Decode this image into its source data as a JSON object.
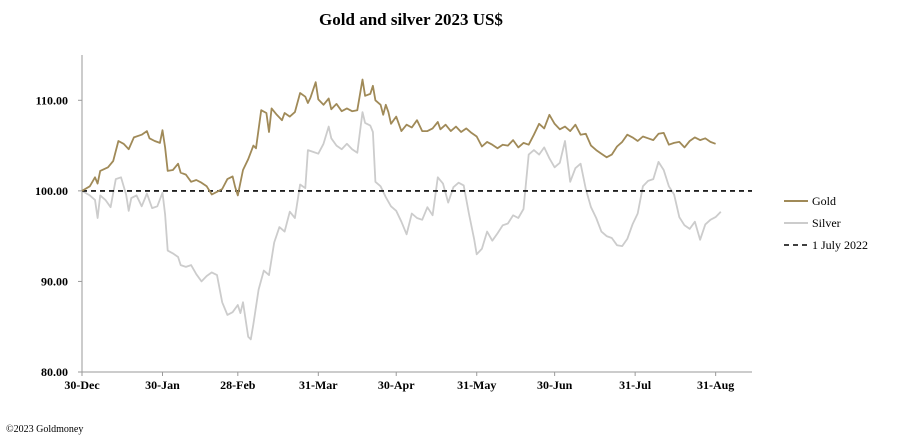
{
  "chart_data": {
    "type": "line",
    "title": "Gold and silver 2023  US$",
    "xlabel": "",
    "ylabel": "",
    "ylim": [
      80,
      115
    ],
    "yticks": [
      "80.00",
      "90.00",
      "100.00",
      "110.00"
    ],
    "yticks_values": [
      80,
      90,
      100,
      110
    ],
    "xticks": [
      "30-Dec",
      "30-Jan",
      "28-Feb",
      "31-Mar",
      "30-Apr",
      "31-May",
      "30-Jun",
      "31-Jul",
      "31-Aug"
    ],
    "xticks_days": [
      0,
      31,
      60,
      91,
      121,
      152,
      182,
      213,
      244
    ],
    "x_range_days": [
      0,
      258
    ],
    "legend_position": "right",
    "series": [
      {
        "name": "Gold",
        "color": "#a08a58",
        "style": "solid",
        "points": [
          [
            0,
            100
          ],
          [
            3,
            100.5
          ],
          [
            5,
            101.5
          ],
          [
            6,
            100.8
          ],
          [
            7,
            102.2
          ],
          [
            10,
            102.6
          ],
          [
            12,
            103.3
          ],
          [
            14,
            105.5
          ],
          [
            16,
            105.2
          ],
          [
            18,
            104.6
          ],
          [
            20,
            105.9
          ],
          [
            23,
            106.2
          ],
          [
            25,
            106.6
          ],
          [
            26,
            105.8
          ],
          [
            28,
            105.5
          ],
          [
            30,
            105.3
          ],
          [
            31,
            106.7
          ],
          [
            32,
            104.8
          ],
          [
            33,
            102.2
          ],
          [
            35,
            102.3
          ],
          [
            37,
            103.0
          ],
          [
            38,
            102.0
          ],
          [
            40,
            101.8
          ],
          [
            42,
            101.0
          ],
          [
            44,
            101.2
          ],
          [
            46,
            100.9
          ],
          [
            48,
            100.5
          ],
          [
            50,
            99.6
          ],
          [
            52,
            99.9
          ],
          [
            54,
            100.2
          ],
          [
            56,
            101.3
          ],
          [
            58,
            101.6
          ],
          [
            59,
            100.4
          ],
          [
            60,
            99.5
          ],
          [
            62,
            102.3
          ],
          [
            64,
            103.5
          ],
          [
            66,
            105.0
          ],
          [
            67,
            104.7
          ],
          [
            69,
            108.9
          ],
          [
            71,
            108.6
          ],
          [
            72,
            106.5
          ],
          [
            73,
            109.1
          ],
          [
            75,
            108.4
          ],
          [
            77,
            107.8
          ],
          [
            78,
            108.6
          ],
          [
            80,
            108.2
          ],
          [
            82,
            108.7
          ],
          [
            84,
            110.8
          ],
          [
            86,
            110.4
          ],
          [
            87,
            109.7
          ],
          [
            88,
            110.3
          ],
          [
            90,
            112.0
          ],
          [
            91,
            110.1
          ],
          [
            93,
            109.5
          ],
          [
            95,
            110.2
          ],
          [
            96,
            109.0
          ],
          [
            98,
            109.6
          ],
          [
            100,
            108.8
          ],
          [
            102,
            109.1
          ],
          [
            104,
            108.8
          ],
          [
            106,
            108.9
          ],
          [
            108,
            112.3
          ],
          [
            109,
            110.5
          ],
          [
            111,
            110.7
          ],
          [
            112,
            111.6
          ],
          [
            113,
            110.0
          ],
          [
            115,
            109.5
          ],
          [
            116,
            108.4
          ],
          [
            117,
            109.5
          ],
          [
            118,
            108.7
          ],
          [
            119,
            107.4
          ],
          [
            121,
            108.2
          ],
          [
            123,
            106.6
          ],
          [
            125,
            107.3
          ],
          [
            127,
            107.0
          ],
          [
            129,
            107.8
          ],
          [
            131,
            106.6
          ],
          [
            133,
            106.6
          ],
          [
            135,
            106.9
          ],
          [
            137,
            107.6
          ],
          [
            138,
            106.8
          ],
          [
            140,
            107.3
          ],
          [
            142,
            106.6
          ],
          [
            144,
            107.1
          ],
          [
            146,
            106.5
          ],
          [
            148,
            106.9
          ],
          [
            150,
            106.4
          ],
          [
            152,
            106.0
          ],
          [
            154,
            104.9
          ],
          [
            156,
            105.4
          ],
          [
            158,
            105.1
          ],
          [
            160,
            104.7
          ],
          [
            162,
            105.1
          ],
          [
            164,
            105.0
          ],
          [
            166,
            105.6
          ],
          [
            168,
            104.8
          ],
          [
            170,
            105.3
          ],
          [
            172,
            105.1
          ],
          [
            174,
            106.2
          ],
          [
            176,
            107.4
          ],
          [
            178,
            106.9
          ],
          [
            180,
            108.4
          ],
          [
            182,
            107.4
          ],
          [
            184,
            106.8
          ],
          [
            186,
            107.1
          ],
          [
            188,
            106.6
          ],
          [
            190,
            107.3
          ],
          [
            192,
            106.2
          ],
          [
            194,
            106.3
          ],
          [
            196,
            105.0
          ],
          [
            198,
            104.5
          ],
          [
            200,
            104.1
          ],
          [
            202,
            103.7
          ],
          [
            204,
            104.0
          ],
          [
            206,
            104.9
          ],
          [
            208,
            105.4
          ],
          [
            210,
            106.2
          ],
          [
            212,
            105.9
          ],
          [
            214,
            105.5
          ],
          [
            216,
            106.0
          ],
          [
            218,
            105.8
          ],
          [
            220,
            105.6
          ],
          [
            222,
            106.3
          ],
          [
            224,
            106.4
          ],
          [
            226,
            105.1
          ],
          [
            228,
            105.3
          ],
          [
            230,
            105.4
          ],
          [
            232,
            104.8
          ],
          [
            234,
            105.5
          ],
          [
            236,
            105.9
          ],
          [
            238,
            105.6
          ],
          [
            240,
            105.8
          ],
          [
            242,
            105.4
          ],
          [
            244,
            105.2
          ]
        ]
      },
      {
        "name": "Silver",
        "color": "#cccccc",
        "style": "solid",
        "points": [
          [
            0,
            100
          ],
          [
            3,
            99.5
          ],
          [
            5,
            99.0
          ],
          [
            6,
            97.0
          ],
          [
            7,
            99.5
          ],
          [
            9,
            99.0
          ],
          [
            11,
            98.2
          ],
          [
            13,
            101.3
          ],
          [
            15,
            101.5
          ],
          [
            17,
            99.6
          ],
          [
            18,
            97.8
          ],
          [
            19,
            99.2
          ],
          [
            21,
            99.5
          ],
          [
            23,
            98.3
          ],
          [
            25,
            99.7
          ],
          [
            27,
            98.1
          ],
          [
            29,
            98.3
          ],
          [
            31,
            99.8
          ],
          [
            32,
            97.4
          ],
          [
            33,
            93.4
          ],
          [
            35,
            93.1
          ],
          [
            37,
            92.7
          ],
          [
            38,
            91.8
          ],
          [
            40,
            91.6
          ],
          [
            42,
            91.8
          ],
          [
            44,
            90.8
          ],
          [
            46,
            90.0
          ],
          [
            48,
            90.6
          ],
          [
            50,
            91.0
          ],
          [
            52,
            90.7
          ],
          [
            54,
            87.7
          ],
          [
            56,
            86.3
          ],
          [
            58,
            86.6
          ],
          [
            60,
            87.4
          ],
          [
            61,
            86.5
          ],
          [
            62,
            87.7
          ],
          [
            64,
            83.9
          ],
          [
            65,
            83.6
          ],
          [
            66,
            85.3
          ],
          [
            68,
            89.1
          ],
          [
            70,
            91.2
          ],
          [
            72,
            90.7
          ],
          [
            74,
            94.3
          ],
          [
            76,
            96.0
          ],
          [
            78,
            95.5
          ],
          [
            80,
            97.7
          ],
          [
            82,
            97.0
          ],
          [
            84,
            100.7
          ],
          [
            86,
            100.3
          ],
          [
            87,
            104.5
          ],
          [
            89,
            104.3
          ],
          [
            91,
            104.1
          ],
          [
            93,
            105.2
          ],
          [
            95,
            107.1
          ],
          [
            96,
            105.8
          ],
          [
            98,
            105.0
          ],
          [
            100,
            104.6
          ],
          [
            102,
            105.2
          ],
          [
            104,
            104.6
          ],
          [
            106,
            104.2
          ],
          [
            108,
            108.7
          ],
          [
            109,
            107.5
          ],
          [
            111,
            107.2
          ],
          [
            112,
            106.5
          ],
          [
            113,
            101.0
          ],
          [
            115,
            100.5
          ],
          [
            117,
            99.3
          ],
          [
            119,
            98.3
          ],
          [
            121,
            97.8
          ],
          [
            123,
            96.6
          ],
          [
            125,
            95.2
          ],
          [
            127,
            97.5
          ],
          [
            129,
            97.0
          ],
          [
            131,
            96.8
          ],
          [
            133,
            98.2
          ],
          [
            135,
            97.3
          ],
          [
            137,
            101.5
          ],
          [
            139,
            100.8
          ],
          [
            141,
            98.7
          ],
          [
            143,
            100.4
          ],
          [
            145,
            100.9
          ],
          [
            147,
            100.6
          ],
          [
            149,
            97.5
          ],
          [
            151,
            94.7
          ],
          [
            152,
            93.0
          ],
          [
            154,
            93.6
          ],
          [
            156,
            95.5
          ],
          [
            158,
            94.5
          ],
          [
            160,
            95.3
          ],
          [
            162,
            96.2
          ],
          [
            164,
            96.4
          ],
          [
            166,
            97.3
          ],
          [
            168,
            97.0
          ],
          [
            170,
            98.0
          ],
          [
            172,
            104.0
          ],
          [
            174,
            104.5
          ],
          [
            176,
            104.0
          ],
          [
            178,
            104.8
          ],
          [
            180,
            103.6
          ],
          [
            182,
            102.6
          ],
          [
            184,
            103.1
          ],
          [
            186,
            105.5
          ],
          [
            188,
            101.0
          ],
          [
            190,
            102.5
          ],
          [
            192,
            103.0
          ],
          [
            194,
            100.2
          ],
          [
            196,
            98.2
          ],
          [
            198,
            97.0
          ],
          [
            200,
            95.5
          ],
          [
            202,
            95.0
          ],
          [
            204,
            94.8
          ],
          [
            206,
            94.0
          ],
          [
            208,
            93.9
          ],
          [
            210,
            94.7
          ],
          [
            212,
            96.3
          ],
          [
            214,
            97.5
          ],
          [
            216,
            100.5
          ],
          [
            218,
            101.1
          ],
          [
            220,
            101.3
          ],
          [
            222,
            103.2
          ],
          [
            224,
            102.3
          ],
          [
            226,
            100.5
          ],
          [
            228,
            99.6
          ],
          [
            230,
            97.1
          ],
          [
            232,
            96.2
          ],
          [
            234,
            95.8
          ],
          [
            236,
            96.6
          ],
          [
            238,
            94.6
          ],
          [
            240,
            96.3
          ],
          [
            242,
            96.8
          ],
          [
            244,
            97.1
          ],
          [
            246,
            97.7
          ]
        ]
      },
      {
        "name": "1 July 2022",
        "color": "#000000",
        "style": "dashed",
        "points": [
          [
            0,
            100
          ],
          [
            258,
            100
          ]
        ]
      }
    ]
  },
  "footer": "©2023 Goldmoney"
}
